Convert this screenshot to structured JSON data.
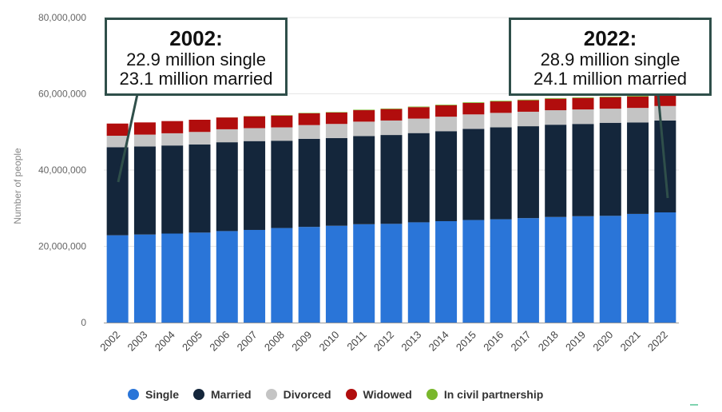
{
  "chart_data": {
    "type": "bar",
    "stacked": true,
    "categories": [
      "2002",
      "2003",
      "2004",
      "2005",
      "2006",
      "2007",
      "2008",
      "2009",
      "2010",
      "2011",
      "2012",
      "2013",
      "2014",
      "2015",
      "2016",
      "2017",
      "2018",
      "2019",
      "2020",
      "2021",
      "2022"
    ],
    "series": [
      {
        "name": "Single",
        "color": "#2a75d8",
        "values": [
          22900000,
          23100000,
          23350000,
          23600000,
          24000000,
          24300000,
          24800000,
          25100000,
          25400000,
          25800000,
          25900000,
          26300000,
          26600000,
          26900000,
          27100000,
          27400000,
          27700000,
          27900000,
          28000000,
          28500000,
          28900000
        ]
      },
      {
        "name": "Married",
        "color": "#14263b",
        "values": [
          23100000,
          23100000,
          23100000,
          23100000,
          23300000,
          23300000,
          22900000,
          23100000,
          23000000,
          23100000,
          23300000,
          23400000,
          23600000,
          23900000,
          24100000,
          24100000,
          24200000,
          24200000,
          24400000,
          24000000,
          24100000
        ]
      },
      {
        "name": "Divorced",
        "color": "#c4c4c4",
        "values": [
          3000000,
          3100000,
          3200000,
          3300000,
          3400000,
          3400000,
          3500000,
          3600000,
          3700000,
          3800000,
          3800000,
          3800000,
          3800000,
          3800000,
          3800000,
          3800000,
          3800000,
          3800000,
          3700000,
          3800000,
          3800000
        ]
      },
      {
        "name": "Widowed",
        "color": "#b10d0d",
        "values": [
          3200000,
          3200000,
          3200000,
          3200000,
          3100000,
          3100000,
          3100000,
          3100000,
          3000000,
          3000000,
          3000000,
          3000000,
          3000000,
          3000000,
          3000000,
          3000000,
          3000000,
          3000000,
          3000000,
          3000000,
          3000000
        ]
      },
      {
        "name": "In civil partnership",
        "color": "#79b72c",
        "values": [
          0,
          0,
          0,
          0,
          20000,
          70000,
          100000,
          110000,
          120000,
          130000,
          140000,
          150000,
          160000,
          170000,
          170000,
          170000,
          170000,
          170000,
          170000,
          170000,
          170000
        ]
      }
    ],
    "ylabel": "Number of people",
    "xlabel": "",
    "ylim": [
      0,
      80000000
    ],
    "yticks": [
      0,
      20000000,
      40000000,
      60000000,
      80000000
    ],
    "ytick_labels": [
      "0",
      "20,000,000",
      "40,000,000",
      "60,000,000",
      "80,000,000"
    ],
    "grid": true,
    "legend": "bottom",
    "annotations": [
      {
        "year": "2002:",
        "lines": [
          "22.9 million single",
          "23.1 million married"
        ]
      },
      {
        "year": "2022:",
        "lines": [
          "28.9 million single",
          "24.1 million married"
        ]
      }
    ]
  },
  "colors": {
    "callout_border": "#2f4f4a",
    "grid": "#e6e6e6",
    "axis": "#999999",
    "tick_text": "#666666"
  }
}
